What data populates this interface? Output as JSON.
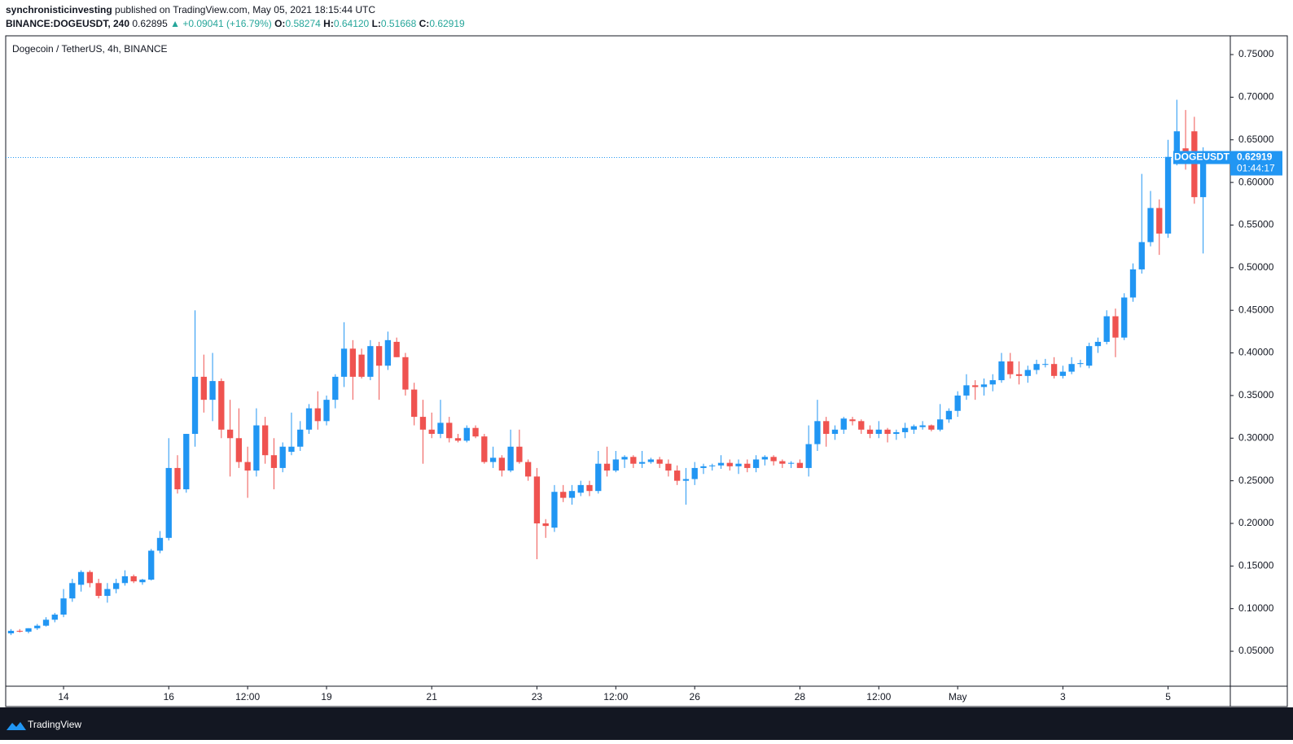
{
  "header": {
    "author": "synchronisticinvesting",
    "published": "published on TradingView.com, May 05, 2021 18:15:44 UTC",
    "symbol": "BINANCE:DOGEUSDT, 240",
    "last": "0.62895",
    "change": "▲ +0.09041 (+16.79%)",
    "o_label": "O:",
    "o": "0.58274",
    "h_label": "H:",
    "h": "0.64120",
    "l_label": "L:",
    "l": "0.51668",
    "c_label": "C:",
    "c": "0.62919"
  },
  "chart_data": {
    "type": "candlestick",
    "title": "Dogecoin / TetherUS, 4h, BINANCE",
    "up_color": "#2196f3",
    "down_color": "#ef5350",
    "open": [
      0.071,
      0.074,
      0.073,
      0.077,
      0.08,
      0.087,
      0.093,
      0.112,
      0.128,
      0.143,
      0.13,
      0.115,
      0.123,
      0.13,
      0.138,
      0.131,
      0.134,
      0.168,
      0.183,
      0.265,
      0.24,
      0.305,
      0.372,
      0.345,
      0.367,
      0.31,
      0.3,
      0.272,
      0.262,
      0.315,
      0.28,
      0.265,
      0.284,
      0.29,
      0.31,
      0.335,
      0.32,
      0.345,
      0.372,
      0.405,
      0.398,
      0.372,
      0.408,
      0.385,
      0.413,
      0.395,
      0.357,
      0.325,
      0.31,
      0.305,
      0.318,
      0.3,
      0.297,
      0.312,
      0.302,
      0.272,
      0.277,
      0.262,
      0.29,
      0.272,
      0.255,
      0.2,
      0.195,
      0.237,
      0.23,
      0.236,
      0.245,
      0.238,
      0.27,
      0.262,
      0.275,
      0.278,
      0.27,
      0.272,
      0.275,
      0.27,
      0.262,
      0.25,
      0.252,
      0.265,
      0.267,
      0.268,
      0.271,
      0.267,
      0.27,
      0.265,
      0.275,
      0.278,
      0.273,
      0.27,
      0.271,
      0.265,
      0.293,
      0.32,
      0.305,
      0.31,
      0.322,
      0.32,
      0.31,
      0.305,
      0.31,
      0.305,
      0.307,
      0.31,
      0.313,
      0.315,
      0.31,
      0.322,
      0.332,
      0.35,
      0.362,
      0.36,
      0.363,
      0.368,
      0.39,
      0.375,
      0.373,
      0.38,
      0.386,
      0.387,
      0.373,
      0.378,
      0.387,
      0.385,
      0.408,
      0.413,
      0.443,
      0.418,
      0.465,
      0.498,
      0.53,
      0.57,
      0.54,
      0.63,
      0.64,
      0.66,
      0.58274
    ],
    "high": [
      0.076,
      0.076,
      0.077,
      0.082,
      0.09,
      0.095,
      0.123,
      0.135,
      0.145,
      0.145,
      0.135,
      0.13,
      0.135,
      0.145,
      0.14,
      0.135,
      0.17,
      0.191,
      0.3,
      0.28,
      0.305,
      0.45,
      0.398,
      0.4,
      0.37,
      0.345,
      0.335,
      0.29,
      0.335,
      0.325,
      0.3,
      0.295,
      0.33,
      0.32,
      0.34,
      0.355,
      0.35,
      0.375,
      0.436,
      0.415,
      0.405,
      0.415,
      0.413,
      0.425,
      0.418,
      0.4,
      0.365,
      0.345,
      0.33,
      0.345,
      0.325,
      0.305,
      0.315,
      0.315,
      0.305,
      0.29,
      0.28,
      0.31,
      0.31,
      0.275,
      0.265,
      0.205,
      0.245,
      0.245,
      0.245,
      0.25,
      0.25,
      0.285,
      0.29,
      0.285,
      0.28,
      0.28,
      0.285,
      0.277,
      0.278,
      0.275,
      0.268,
      0.265,
      0.272,
      0.27,
      0.27,
      0.28,
      0.275,
      0.275,
      0.275,
      0.28,
      0.28,
      0.28,
      0.275,
      0.273,
      0.275,
      0.315,
      0.345,
      0.325,
      0.315,
      0.325,
      0.325,
      0.322,
      0.315,
      0.32,
      0.312,
      0.31,
      0.318,
      0.316,
      0.32,
      0.316,
      0.34,
      0.335,
      0.355,
      0.375,
      0.368,
      0.37,
      0.375,
      0.4,
      0.4,
      0.39,
      0.385,
      0.392,
      0.393,
      0.395,
      0.385,
      0.395,
      0.392,
      0.412,
      0.418,
      0.45,
      0.452,
      0.47,
      0.505,
      0.61,
      0.59,
      0.58,
      0.65,
      0.697,
      0.685,
      0.677,
      0.6412
    ],
    "low": [
      0.069,
      0.072,
      0.071,
      0.075,
      0.079,
      0.084,
      0.09,
      0.108,
      0.12,
      0.125,
      0.112,
      0.107,
      0.118,
      0.127,
      0.13,
      0.128,
      0.133,
      0.165,
      0.18,
      0.235,
      0.236,
      0.29,
      0.33,
      0.32,
      0.3,
      0.255,
      0.265,
      0.23,
      0.255,
      0.27,
      0.24,
      0.26,
      0.28,
      0.285,
      0.305,
      0.31,
      0.315,
      0.335,
      0.36,
      0.345,
      0.37,
      0.368,
      0.345,
      0.38,
      0.395,
      0.35,
      0.315,
      0.27,
      0.3,
      0.3,
      0.295,
      0.295,
      0.295,
      0.3,
      0.27,
      0.265,
      0.255,
      0.26,
      0.27,
      0.25,
      0.158,
      0.183,
      0.19,
      0.225,
      0.222,
      0.232,
      0.232,
      0.235,
      0.255,
      0.26,
      0.265,
      0.265,
      0.265,
      0.27,
      0.265,
      0.255,
      0.245,
      0.222,
      0.245,
      0.258,
      0.262,
      0.264,
      0.262,
      0.258,
      0.26,
      0.26,
      0.268,
      0.268,
      0.265,
      0.265,
      0.265,
      0.255,
      0.285,
      0.29,
      0.298,
      0.305,
      0.315,
      0.305,
      0.3,
      0.3,
      0.295,
      0.298,
      0.3,
      0.305,
      0.31,
      0.308,
      0.308,
      0.318,
      0.325,
      0.345,
      0.345,
      0.35,
      0.355,
      0.365,
      0.37,
      0.363,
      0.365,
      0.375,
      0.383,
      0.37,
      0.37,
      0.375,
      0.383,
      0.382,
      0.4,
      0.41,
      0.395,
      0.415,
      0.46,
      0.493,
      0.525,
      0.515,
      0.535,
      0.62,
      0.615,
      0.575,
      0.51668
    ],
    "close": [
      0.074,
      0.073,
      0.077,
      0.08,
      0.087,
      0.093,
      0.112,
      0.13,
      0.143,
      0.13,
      0.115,
      0.123,
      0.13,
      0.138,
      0.132,
      0.134,
      0.168,
      0.183,
      0.265,
      0.24,
      0.305,
      0.372,
      0.345,
      0.367,
      0.31,
      0.3,
      0.272,
      0.262,
      0.315,
      0.28,
      0.265,
      0.29,
      0.29,
      0.31,
      0.335,
      0.32,
      0.345,
      0.372,
      0.405,
      0.372,
      0.372,
      0.408,
      0.385,
      0.415,
      0.395,
      0.357,
      0.325,
      0.31,
      0.305,
      0.318,
      0.3,
      0.297,
      0.312,
      0.302,
      0.272,
      0.277,
      0.262,
      0.29,
      0.272,
      0.255,
      0.2,
      0.197,
      0.237,
      0.23,
      0.238,
      0.245,
      0.238,
      0.27,
      0.262,
      0.275,
      0.278,
      0.27,
      0.272,
      0.275,
      0.27,
      0.262,
      0.25,
      0.252,
      0.265,
      0.267,
      0.268,
      0.271,
      0.267,
      0.27,
      0.265,
      0.275,
      0.278,
      0.273,
      0.27,
      0.271,
      0.265,
      0.293,
      0.32,
      0.305,
      0.31,
      0.323,
      0.32,
      0.31,
      0.305,
      0.31,
      0.305,
      0.307,
      0.312,
      0.314,
      0.315,
      0.31,
      0.322,
      0.332,
      0.35,
      0.362,
      0.36,
      0.363,
      0.368,
      0.39,
      0.375,
      0.373,
      0.38,
      0.387,
      0.387,
      0.373,
      0.378,
      0.387,
      0.388,
      0.408,
      0.413,
      0.443,
      0.418,
      0.465,
      0.498,
      0.53,
      0.57,
      0.54,
      0.63,
      0.66,
      0.625,
      0.58274,
      0.62919
    ],
    "xlim": [
      -0.6,
      139.1
    ],
    "xticks": [
      {
        "value": 6,
        "label": "14"
      },
      {
        "value": 18,
        "label": "16"
      },
      {
        "value": 27,
        "label": "12:00"
      },
      {
        "value": 36,
        "label": "19"
      },
      {
        "value": 48,
        "label": "21"
      },
      {
        "value": 60,
        "label": "23"
      },
      {
        "value": 69,
        "label": "12:00"
      },
      {
        "value": 78,
        "label": "26"
      },
      {
        "value": 90,
        "label": "28"
      },
      {
        "value": 99,
        "label": "12:00"
      },
      {
        "value": 108,
        "label": "May"
      },
      {
        "value": 120,
        "label": "3"
      },
      {
        "value": 132,
        "label": "5"
      }
    ],
    "ylim": [
      0.009,
      0.772
    ],
    "yticks": [
      {
        "value": 0.05,
        "label": "0.05000"
      },
      {
        "value": 0.1,
        "label": "0.10000"
      },
      {
        "value": 0.15,
        "label": "0.15000"
      },
      {
        "value": 0.2,
        "label": "0.20000"
      },
      {
        "value": 0.25,
        "label": "0.25000"
      },
      {
        "value": 0.3,
        "label": "0.30000"
      },
      {
        "value": 0.35,
        "label": "0.35000"
      },
      {
        "value": 0.4,
        "label": "0.40000"
      },
      {
        "value": 0.45,
        "label": "0.45000"
      },
      {
        "value": 0.5,
        "label": "0.50000"
      },
      {
        "value": 0.55,
        "label": "0.55000"
      },
      {
        "value": 0.6,
        "label": "0.60000"
      },
      {
        "value": 0.65,
        "label": "0.65000"
      },
      {
        "value": 0.7,
        "label": "0.70000"
      },
      {
        "value": 0.75,
        "label": "0.75000"
      }
    ],
    "price_line": {
      "symbol": "DOGEUSDT",
      "label": "0.62919",
      "countdown": "01:44:17"
    },
    "brand": "TradingView"
  }
}
